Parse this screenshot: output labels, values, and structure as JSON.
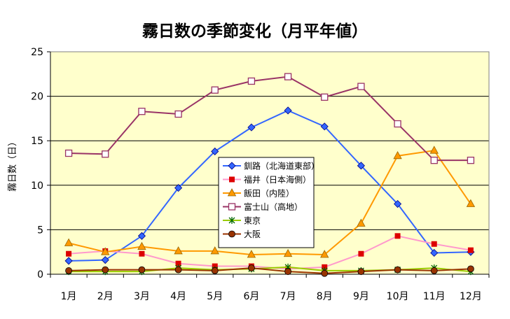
{
  "chart_data": {
    "type": "line",
    "title": "霧日数の季節変化（月平年値）",
    "ylabel": "霧日数（日）",
    "xlabel": "",
    "categories": [
      "1月",
      "2月",
      "3月",
      "4月",
      "5月",
      "6月",
      "7月",
      "8月",
      "9月",
      "10月",
      "11月",
      "12月"
    ],
    "ylim": [
      0,
      25
    ],
    "yticks": [
      0,
      5,
      10,
      15,
      20,
      25
    ],
    "grid": true,
    "legend_position": "center",
    "plot_background": "#FFFFCC",
    "series": [
      {
        "name": "釧路（北海道東部）",
        "color": "#3366FF",
        "marker": "diamond",
        "values": [
          1.5,
          1.6,
          4.3,
          9.7,
          13.8,
          16.5,
          18.4,
          16.6,
          12.2,
          7.9,
          2.4,
          2.5
        ]
      },
      {
        "name": "福井（日本海側）",
        "color": "#FF99CC",
        "marker_color": "#DD0000",
        "marker": "square",
        "values": [
          2.3,
          2.6,
          2.3,
          1.2,
          0.9,
          0.9,
          0.6,
          0.8,
          2.3,
          4.3,
          3.4,
          2.7
        ]
      },
      {
        "name": "飯田（内陸）",
        "color": "#FF9900",
        "marker": "triangle",
        "values": [
          3.5,
          2.5,
          3.1,
          2.6,
          2.6,
          2.2,
          2.3,
          2.2,
          5.7,
          13.3,
          13.9,
          7.9
        ]
      },
      {
        "name": "富士山（高地）",
        "color": "#993366",
        "marker": "square-open",
        "values": [
          13.6,
          13.5,
          18.3,
          18.0,
          20.7,
          21.7,
          22.2,
          19.9,
          21.1,
          16.9,
          12.8,
          12.8
        ]
      },
      {
        "name": "東京",
        "color": "#99CC00",
        "marker_color": "#006600",
        "marker": "star",
        "values": [
          0.3,
          0.3,
          0.3,
          0.7,
          0.5,
          0.6,
          0.8,
          0.4,
          0.4,
          0.5,
          0.7,
          0.3
        ]
      },
      {
        "name": "大阪",
        "color": "#993300",
        "marker": "circle",
        "values": [
          0.4,
          0.5,
          0.5,
          0.5,
          0.4,
          0.7,
          0.3,
          0.1,
          0.3,
          0.5,
          0.4,
          0.6
        ]
      }
    ]
  }
}
